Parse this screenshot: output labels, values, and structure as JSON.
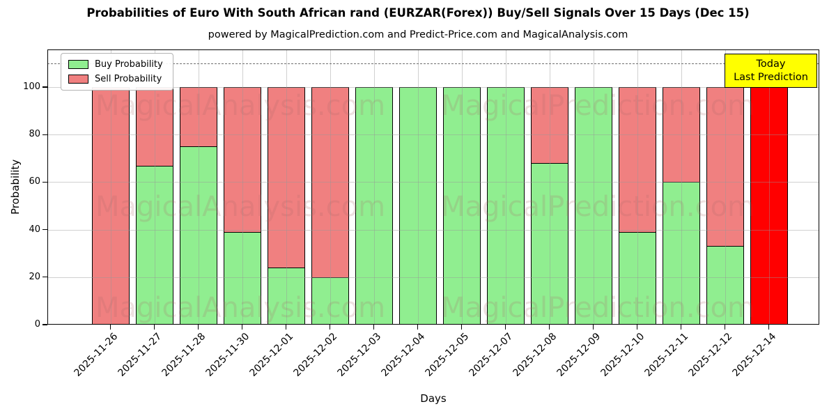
{
  "title": "Probabilities of Euro With South African rand (EURZAR(Forex)) Buy/Sell Signals Over 15 Days (Dec 15)",
  "subtitle": "powered by MagicalPrediction.com and Predict-Price.com and MagicalAnalysis.com",
  "annotation": {
    "line1": "Today",
    "line2": "Last Prediction",
    "bg_color": "#ffff00",
    "border_color": "#000000"
  },
  "legend": {
    "position": "upper left",
    "items": [
      {
        "label": "Buy Probability",
        "color": "#90EE90"
      },
      {
        "label": "Sell Probability",
        "color": "#F08080"
      }
    ]
  },
  "watermarks": {
    "left_text": "MagicalAnalysis.com",
    "right_text": "MagicalPrediction.com",
    "color": "rgba(170,105,105,0.20)"
  },
  "chart_data": {
    "type": "bar",
    "stacked": true,
    "title": "Probabilities of Euro With South African rand (EURZAR(Forex)) Buy/Sell Signals Over 15 Days (Dec 15)",
    "xlabel": "Days",
    "ylabel": "Probability",
    "categories": [
      "2025-11-26",
      "2025-11-27",
      "2025-11-28",
      "2025-11-30",
      "2025-12-01",
      "2025-12-02",
      "2025-12-03",
      "2025-12-04",
      "2025-12-05",
      "2025-12-07",
      "2025-12-08",
      "2025-12-09",
      "2025-12-10",
      "2025-12-11",
      "2025-12-12",
      "2025-12-14"
    ],
    "series": [
      {
        "name": "Buy Probability",
        "color": "#90EE90",
        "values": [
          0,
          67,
          75,
          39,
          24,
          20,
          100,
          100,
          100,
          100,
          68,
          100,
          39,
          60,
          33,
          0
        ]
      },
      {
        "name": "Sell Probability",
        "color": "#F08080",
        "values": [
          100,
          33,
          25,
          61,
          76,
          80,
          0,
          0,
          0,
          0,
          32,
          0,
          61,
          40,
          67,
          100
        ]
      }
    ],
    "today_bar": {
      "index": 15,
      "date": "2025-12-14",
      "series": "Sell Probability",
      "value": 100,
      "color": "#FF0000"
    },
    "bar_edge_color": "#000000",
    "yticks": [
      0,
      20,
      40,
      60,
      80,
      100
    ],
    "ylim": [
      0,
      116
    ],
    "dashed_line_y": 110,
    "grid": true,
    "legend_position": "upper left"
  }
}
